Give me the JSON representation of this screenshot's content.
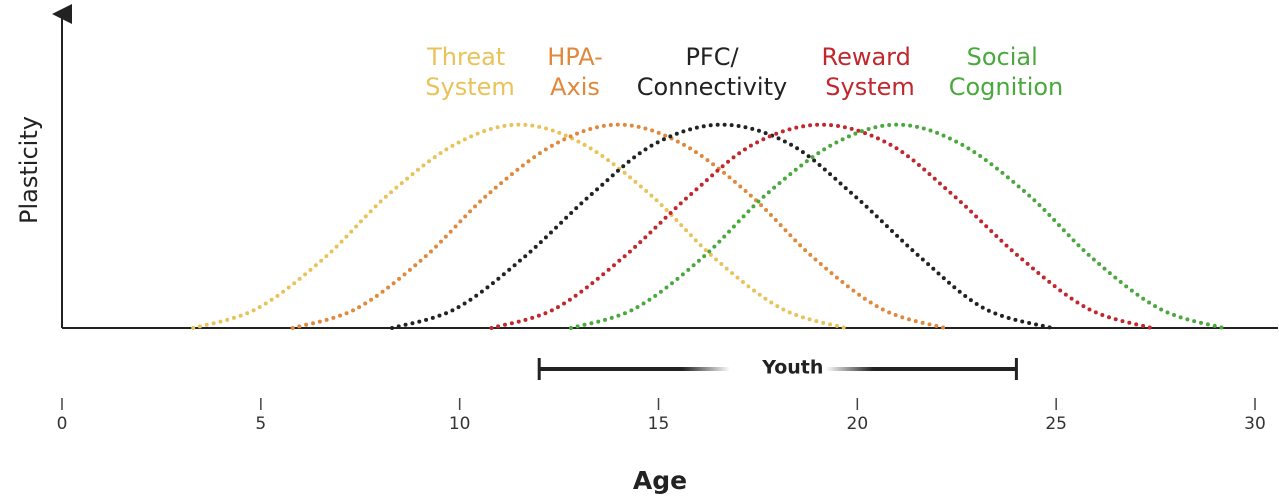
{
  "chart_data": {
    "type": "line",
    "y_label": "Plasticity",
    "x_label": "Age",
    "xlim": [
      0,
      30
    ],
    "xticks": [
      0,
      5,
      10,
      15,
      20,
      25,
      30
    ],
    "ylim": [
      0,
      1.5
    ],
    "annotation": {
      "label": "Youth",
      "range": [
        12,
        24
      ]
    },
    "series": [
      {
        "name": "Threat System",
        "color": "#e8c35a",
        "x": [
          3.3,
          4.9,
          6.6,
          8.2,
          9.9,
          11.5,
          13.1,
          14.8,
          16.4,
          18.1,
          19.7
        ],
        "values": [
          0,
          0.095,
          0.345,
          0.655,
          0.905,
          1,
          0.905,
          0.655,
          0.345,
          0.095,
          0
        ]
      },
      {
        "name": "HPA-Axis",
        "color": "#e0893c",
        "x": [
          5.8,
          7.4,
          9.1,
          10.7,
          12.4,
          14,
          15.6,
          17.3,
          18.9,
          20.6,
          22.2
        ],
        "values": [
          0,
          0.095,
          0.345,
          0.655,
          0.905,
          1,
          0.905,
          0.655,
          0.345,
          0.095,
          0
        ]
      },
      {
        "name": "PFC/Connectivity",
        "color": "#222222",
        "x": [
          8.3,
          9.9,
          11.6,
          13.3,
          14.9,
          16.6,
          18.3,
          19.9,
          21.6,
          23.2,
          24.9
        ],
        "values": [
          0,
          0.095,
          0.345,
          0.655,
          0.905,
          1,
          0.905,
          0.655,
          0.345,
          0.095,
          0
        ]
      },
      {
        "name": "Reward System",
        "color": "#c0282d",
        "x": [
          10.8,
          12.4,
          14.1,
          15.8,
          17.4,
          19.1,
          20.8,
          22.4,
          24.1,
          25.8,
          27.4
        ],
        "values": [
          0,
          0.095,
          0.345,
          0.655,
          0.905,
          1,
          0.905,
          0.655,
          0.345,
          0.095,
          0
        ]
      },
      {
        "name": "Social Cognition",
        "color": "#4aa83e",
        "x": [
          12.8,
          14.4,
          16.1,
          17.7,
          19.4,
          21,
          22.6,
          24.3,
          25.9,
          27.6,
          29.2
        ],
        "values": [
          0,
          0.095,
          0.345,
          0.655,
          0.905,
          1,
          0.905,
          0.655,
          0.345,
          0.095,
          0
        ]
      }
    ]
  }
}
